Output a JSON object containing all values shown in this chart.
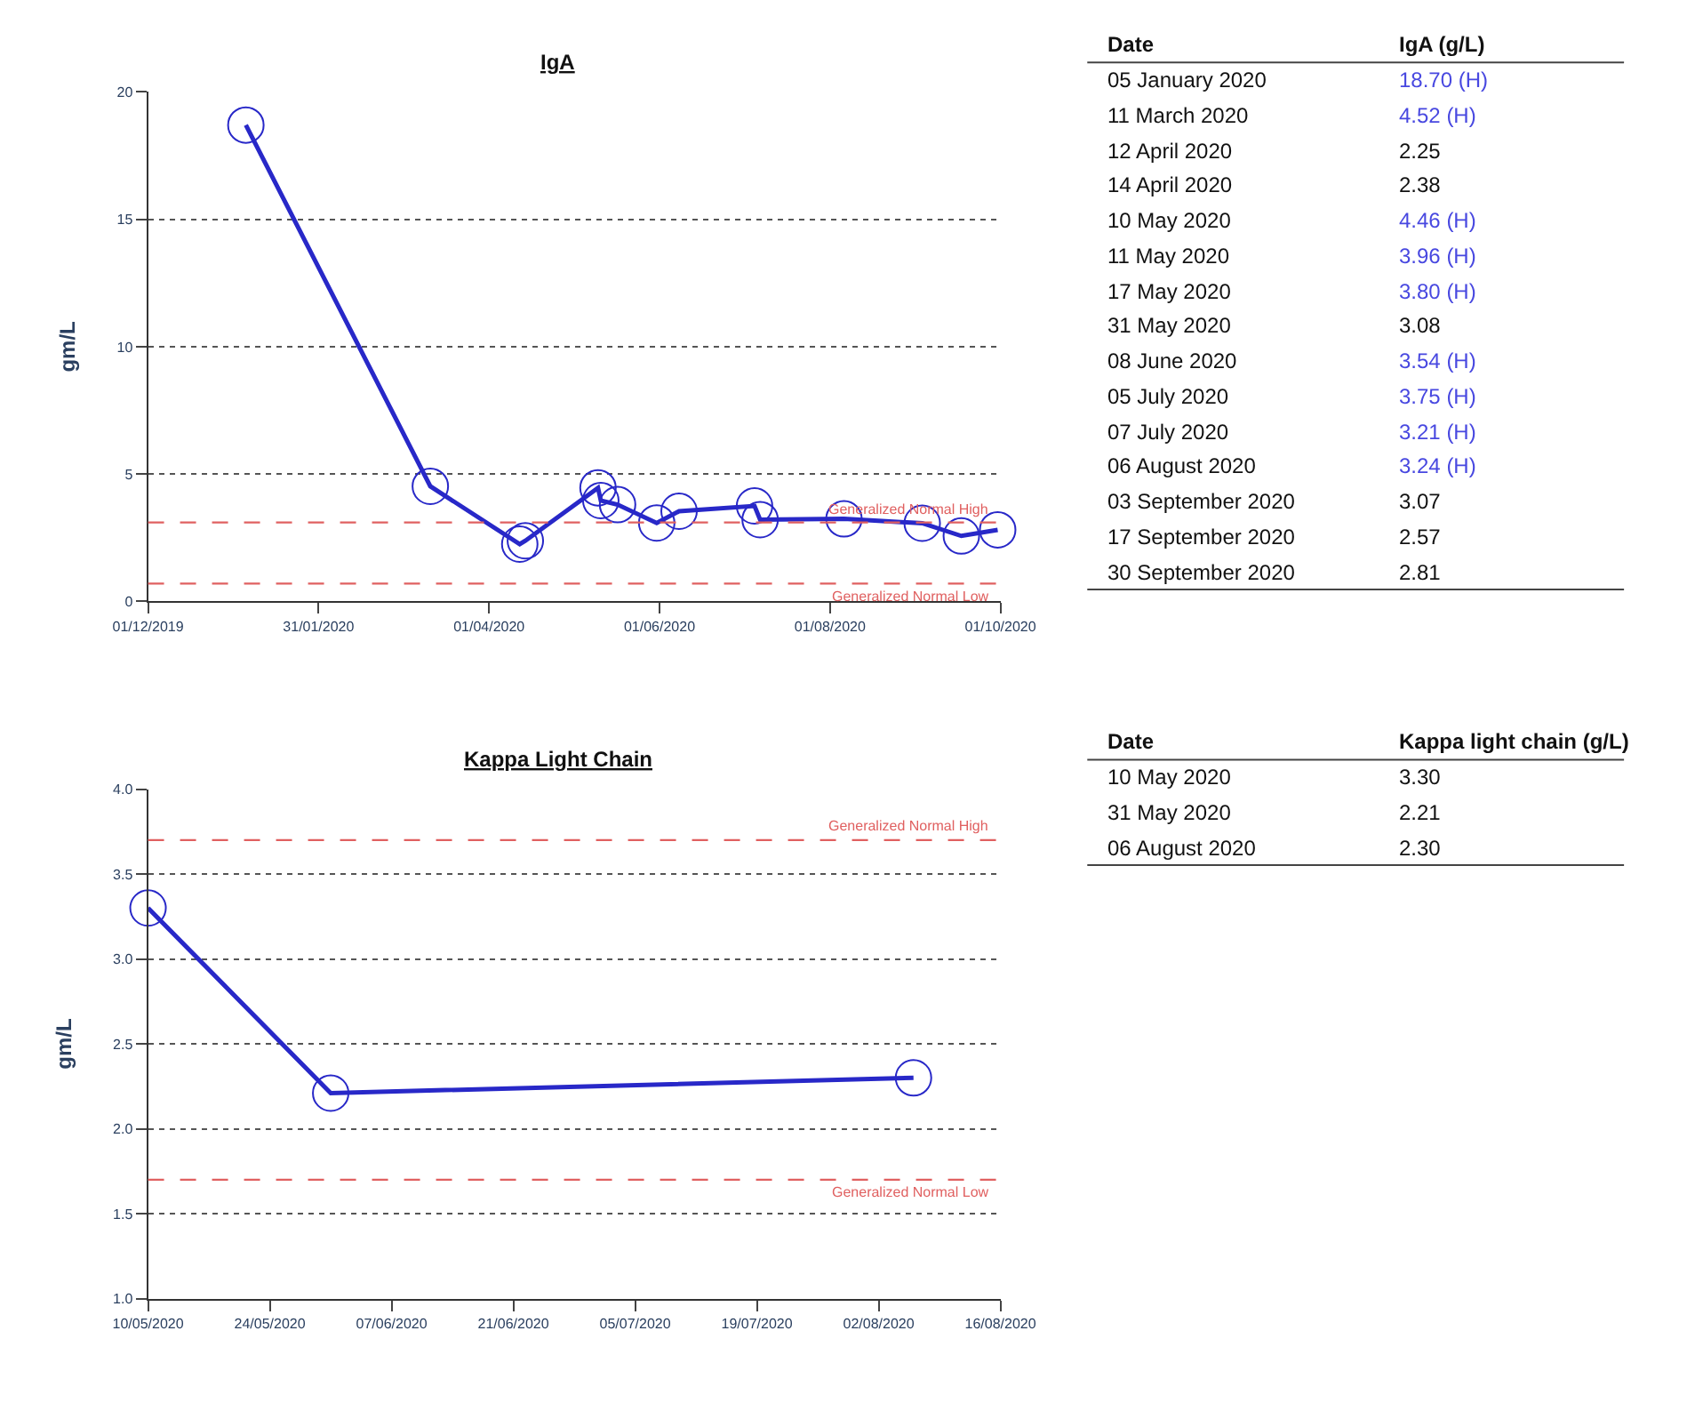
{
  "chart_data": [
    {
      "type": "line",
      "title": "IgA",
      "ylabel": "gm/L",
      "annotations": [
        "Date",
        "IgA (g/L)",
        "05 January 2020",
        "18.70 (H)",
        "11 March 2020",
        "4.52 (H)",
        "12 April 2020",
        "2.25",
        "14 April 2020",
        "2.38",
        "10 May 2020",
        "4.46 (H)",
        "11 May 2020",
        "3.96 (H)",
        "17 May 2020",
        "3.80 (H)",
        "31 May 2020",
        "3.08",
        "08 June 2020",
        "3.54 (H)",
        "05 July 2020",
        "3.75 (H)",
        "07 July 2020",
        "3.21 (H)",
        "06 August 2020",
        "3.24 (H)",
        "03 September 2020",
        "3.07",
        "17 September 2020",
        "2.57",
        "30 September 2020",
        "2.81"
      ],
      "x": [
        "2020-01-05",
        "2020-03-11",
        "2020-04-12",
        "2020-04-14",
        "2020-05-10",
        "2020-05-11",
        "2020-05-17",
        "2020-05-31",
        "2020-06-08",
        "2020-07-05",
        "2020-07-07",
        "2020-08-06",
        "2020-09-03",
        "2020-09-17",
        "2020-09-30"
      ],
      "series": [
        {
          "color": "#2828c8",
          "values": [
            18.7,
            4.52,
            2.25,
            2.38,
            4.46,
            3.96,
            3.8,
            3.08,
            3.54,
            3.75,
            3.21,
            3.24,
            3.07,
            2.57,
            2.81
          ]
        }
      ],
      "xlim": [
        "2019-12-01",
        "2020-10-01"
      ],
      "xticks": [
        {
          "value": "2019-12-01",
          "label": "01/12/2019"
        },
        {
          "value": "2020-01-31",
          "label": "31/01/2020"
        },
        {
          "value": "2020-04-01",
          "label": "01/04/2020"
        },
        {
          "value": "2020-06-01",
          "label": "01/06/2020"
        },
        {
          "value": "2020-08-01",
          "label": "01/08/2020"
        },
        {
          "value": "2020-10-01",
          "label": "01/10/2020"
        }
      ],
      "ylim": [
        0,
        20
      ],
      "yticks": [
        0,
        5,
        10,
        15,
        20
      ],
      "ref_lines": [
        {
          "axis": "y",
          "value": 3.1,
          "label": "Generalized Normal High",
          "color": "#e06060",
          "line_style": "dashed"
        },
        {
          "axis": "y",
          "value": 0.7,
          "label": "Generalized Normal Low",
          "color": "#e06060",
          "line_style": "dashed"
        }
      ],
      "grid": "y",
      "marker": "circle",
      "line_style": "solid"
    },
    {
      "type": "line",
      "title": "Kappa Light Chain",
      "ylabel": "gm/L",
      "annotations": [
        "Date",
        "Kappa light chain (g/L)",
        "10 May 2020",
        "3.30",
        "31 May 2020",
        "2.21",
        "06 August 2020",
        "2.30"
      ],
      "x": [
        "2020-05-10",
        "2020-05-31",
        "2020-08-06"
      ],
      "series": [
        {
          "color": "#2828c8",
          "values": [
            3.3,
            2.21,
            2.3
          ]
        }
      ],
      "xlim": [
        "2020-05-10",
        "2020-08-16"
      ],
      "xticks": [
        {
          "value": "2020-05-10",
          "label": "10/05/2020"
        },
        {
          "value": "2020-05-24",
          "label": "24/05/2020"
        },
        {
          "value": "2020-06-07",
          "label": "07/06/2020"
        },
        {
          "value": "2020-06-21",
          "label": "21/06/2020"
        },
        {
          "value": "2020-07-05",
          "label": "05/07/2020"
        },
        {
          "value": "2020-07-19",
          "label": "19/07/2020"
        },
        {
          "value": "2020-08-02",
          "label": "02/08/2020"
        },
        {
          "value": "2020-08-16",
          "label": "16/08/2020"
        }
      ],
      "ylim": [
        1.0,
        4.0
      ],
      "yticks": [
        {
          "value": 1.0,
          "label": "1.0"
        },
        {
          "value": 1.5,
          "label": "1.5"
        },
        {
          "value": 2.0,
          "label": "2.0"
        },
        {
          "value": 2.5,
          "label": "2.5"
        },
        {
          "value": 3.0,
          "label": "3.0"
        },
        {
          "value": 3.5,
          "label": "3.5"
        },
        {
          "value": 4.0,
          "label": "4.0"
        }
      ],
      "ref_lines": [
        {
          "axis": "y",
          "value": 3.7,
          "label": "Generalized Normal High",
          "color": "#e06060",
          "line_style": "dashed"
        },
        {
          "axis": "y",
          "value": 1.7,
          "label": "Generalized Normal Low",
          "color": "#e06060",
          "line_style": "dashed"
        }
      ],
      "grid": "y",
      "marker": "circle",
      "line_style": "solid"
    }
  ]
}
